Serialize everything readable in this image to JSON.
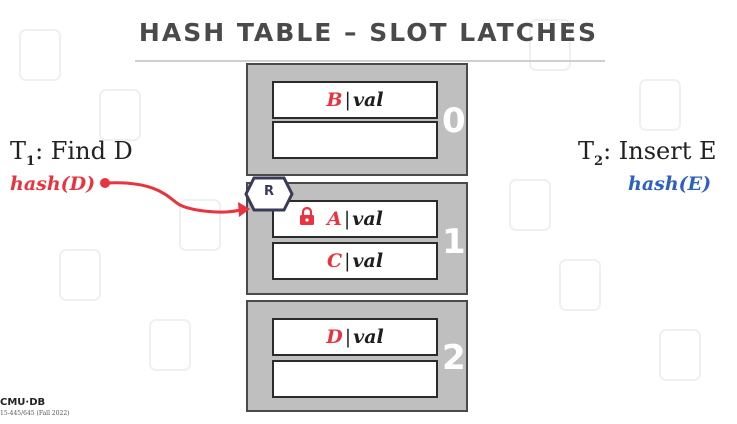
{
  "title": "HASH TABLE – SLOT LATCHES",
  "blocks": [
    {
      "number": "0",
      "slots": [
        {
          "key": "B",
          "value": "val"
        },
        {
          "key": "",
          "value": ""
        }
      ]
    },
    {
      "number": "1",
      "slots": [
        {
          "key": "A",
          "value": "val"
        },
        {
          "key": "C",
          "value": "val"
        }
      ]
    },
    {
      "number": "2",
      "slots": [
        {
          "key": "D",
          "value": "val"
        },
        {
          "key": "",
          "value": ""
        }
      ]
    }
  ],
  "separator": "|",
  "t1": {
    "name": "T",
    "subscript": "1",
    "action": ": Find D",
    "hash": "hash(D)",
    "hash_color": "#e8343f"
  },
  "t2": {
    "name": "T",
    "subscript": "2",
    "action": ": Insert E",
    "hash": "hash(E)",
    "hash_color": "#2e5fc4"
  },
  "latch": {
    "mode": "R"
  },
  "colors": {
    "accent_red": "#e8343f",
    "accent_blue": "#2e5fc4",
    "block_gray": "#bfbfbf"
  },
  "footer": {
    "logo": "CMU·DB",
    "course": "15-445/645 (Fall 2022)"
  }
}
